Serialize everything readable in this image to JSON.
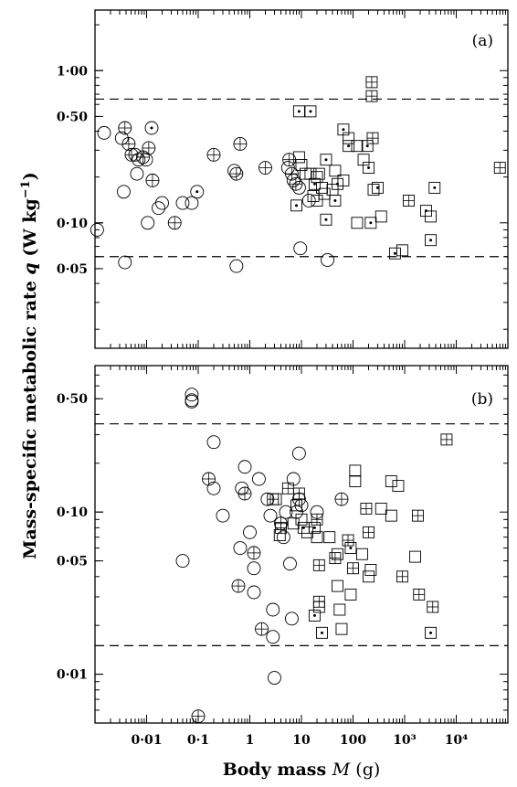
{
  "chart_data": {
    "type": "scatter",
    "xlabel": "Body mass M (g)",
    "ylabel": "Mass-specific metabolic rate q (W kg⁻¹)",
    "x_scale": "log",
    "y_scale": "log",
    "xlim": [
      0.001,
      100000
    ],
    "x_ticks": [
      {
        "value": 0.01,
        "label": "0·01"
      },
      {
        "value": 0.1,
        "label": "0·1"
      },
      {
        "value": 1,
        "label": "1"
      },
      {
        "value": 10,
        "label": "10"
      },
      {
        "value": 100,
        "label": "100"
      },
      {
        "value": 1000,
        "label": "10³"
      },
      {
        "value": 10000,
        "label": "10⁴"
      }
    ],
    "marker_legend": {
      "circle": "open circle",
      "circle-cross": "circle with cross",
      "circle-dot": "circle with dot",
      "square": "open square",
      "square-cross": "square with cross",
      "square-dot": "square with dot"
    },
    "panels": [
      {
        "label": "(a)",
        "ylim": [
          0.015,
          2.5
        ],
        "y_ticks": [
          {
            "value": 1.0,
            "label": "1·00"
          },
          {
            "value": 0.5,
            "label": "0·50"
          },
          {
            "value": 0.1,
            "label": "0·10"
          },
          {
            "value": 0.05,
            "label": "0·05"
          }
        ],
        "ref_lines": [
          0.65,
          0.06
        ],
        "points": [
          {
            "x": 0.0011,
            "y": 0.09,
            "m": "circle"
          },
          {
            "x": 0.0015,
            "y": 0.39,
            "m": "circle"
          },
          {
            "x": 0.0033,
            "y": 0.36,
            "m": "circle"
          },
          {
            "x": 0.0038,
            "y": 0.42,
            "m": "circle-cross"
          },
          {
            "x": 0.0036,
            "y": 0.16,
            "m": "circle"
          },
          {
            "x": 0.0038,
            "y": 0.055,
            "m": "circle"
          },
          {
            "x": 0.0045,
            "y": 0.33,
            "m": "circle-cross"
          },
          {
            "x": 0.0051,
            "y": 0.28,
            "m": "circle-cross"
          },
          {
            "x": 0.006,
            "y": 0.28,
            "m": "circle"
          },
          {
            "x": 0.0065,
            "y": 0.21,
            "m": "circle"
          },
          {
            "x": 0.007,
            "y": 0.26,
            "m": "circle"
          },
          {
            "x": 0.0085,
            "y": 0.27,
            "m": "circle-cross"
          },
          {
            "x": 0.0098,
            "y": 0.26,
            "m": "circle"
          },
          {
            "x": 0.011,
            "y": 0.31,
            "m": "circle-cross"
          },
          {
            "x": 0.0125,
            "y": 0.42,
            "m": "circle-dot"
          },
          {
            "x": 0.013,
            "y": 0.19,
            "m": "circle-cross"
          },
          {
            "x": 0.0105,
            "y": 0.1,
            "m": "circle"
          },
          {
            "x": 0.017,
            "y": 0.125,
            "m": "circle"
          },
          {
            "x": 0.02,
            "y": 0.135,
            "m": "circle"
          },
          {
            "x": 0.035,
            "y": 0.1,
            "m": "circle-cross"
          },
          {
            "x": 0.05,
            "y": 0.135,
            "m": "circle"
          },
          {
            "x": 0.075,
            "y": 0.135,
            "m": "circle"
          },
          {
            "x": 0.095,
            "y": 0.16,
            "m": "circle-dot"
          },
          {
            "x": 0.2,
            "y": 0.28,
            "m": "circle-cross"
          },
          {
            "x": 0.5,
            "y": 0.22,
            "m": "circle"
          },
          {
            "x": 0.55,
            "y": 0.21,
            "m": "circle-cross"
          },
          {
            "x": 0.65,
            "y": 0.33,
            "m": "circle-cross"
          },
          {
            "x": 0.55,
            "y": 0.052,
            "m": "circle"
          },
          {
            "x": 2.0,
            "y": 0.23,
            "m": "circle-cross"
          },
          {
            "x": 5.8,
            "y": 0.26,
            "m": "circle-cross"
          },
          {
            "x": 5.5,
            "y": 0.23,
            "m": "circle"
          },
          {
            "x": 6.5,
            "y": 0.21,
            "m": "circle-cross"
          },
          {
            "x": 7.0,
            "y": 0.19,
            "m": "circle"
          },
          {
            "x": 7.8,
            "y": 0.18,
            "m": "circle-cross"
          },
          {
            "x": 9.0,
            "y": 0.17,
            "m": "circle"
          },
          {
            "x": 14.0,
            "y": 0.14,
            "m": "circle"
          },
          {
            "x": 9.5,
            "y": 0.068,
            "m": "circle"
          },
          {
            "x": 32.0,
            "y": 0.057,
            "m": "circle"
          },
          {
            "x": 9.0,
            "y": 0.54,
            "m": "square-dot"
          },
          {
            "x": 15.0,
            "y": 0.54,
            "m": "square-dot"
          },
          {
            "x": 230.0,
            "y": 0.84,
            "m": "square-cross"
          },
          {
            "x": 230.0,
            "y": 0.68,
            "m": "square-cross"
          },
          {
            "x": 240.0,
            "y": 0.36,
            "m": "square-cross"
          },
          {
            "x": 65.0,
            "y": 0.41,
            "m": "square-dot"
          },
          {
            "x": 82.0,
            "y": 0.36,
            "m": "square"
          },
          {
            "x": 82.0,
            "y": 0.32,
            "m": "square-dot"
          },
          {
            "x": 120.0,
            "y": 0.32,
            "m": "square"
          },
          {
            "x": 160.0,
            "y": 0.26,
            "m": "square"
          },
          {
            "x": 190.0,
            "y": 0.32,
            "m": "square-dot"
          },
          {
            "x": 200.0,
            "y": 0.23,
            "m": "square-dot"
          },
          {
            "x": 30.0,
            "y": 0.26,
            "m": "square-dot"
          },
          {
            "x": 45.0,
            "y": 0.22,
            "m": "square"
          },
          {
            "x": 9.0,
            "y": 0.27,
            "m": "square"
          },
          {
            "x": 10.0,
            "y": 0.24,
            "m": "square"
          },
          {
            "x": 12.0,
            "y": 0.21,
            "m": "square"
          },
          {
            "x": 15.0,
            "y": 0.21,
            "m": "square"
          },
          {
            "x": 20.0,
            "y": 0.2,
            "m": "square"
          },
          {
            "x": 22.0,
            "y": 0.21,
            "m": "square"
          },
          {
            "x": 18.0,
            "y": 0.18,
            "m": "square-dot"
          },
          {
            "x": 25.0,
            "y": 0.17,
            "m": "square"
          },
          {
            "x": 50.0,
            "y": 0.18,
            "m": "square-dot"
          },
          {
            "x": 65.0,
            "y": 0.19,
            "m": "square"
          },
          {
            "x": 40.0,
            "y": 0.165,
            "m": "square"
          },
          {
            "x": 28.0,
            "y": 0.155,
            "m": "square"
          },
          {
            "x": 17.0,
            "y": 0.15,
            "m": "square"
          },
          {
            "x": 8.0,
            "y": 0.13,
            "m": "square-dot"
          },
          {
            "x": 20.0,
            "y": 0.14,
            "m": "square"
          },
          {
            "x": 45.0,
            "y": 0.14,
            "m": "square-dot"
          },
          {
            "x": 30.0,
            "y": 0.105,
            "m": "square-dot"
          },
          {
            "x": 120.0,
            "y": 0.1,
            "m": "square"
          },
          {
            "x": 220.0,
            "y": 0.1,
            "m": "square-dot"
          },
          {
            "x": 350.0,
            "y": 0.11,
            "m": "square"
          },
          {
            "x": 300.0,
            "y": 0.17,
            "m": "square-dot"
          },
          {
            "x": 250.0,
            "y": 0.165,
            "m": "square"
          },
          {
            "x": 1200.0,
            "y": 0.14,
            "m": "square-cross"
          },
          {
            "x": 2600.0,
            "y": 0.12,
            "m": "square-dot"
          },
          {
            "x": 3200.0,
            "y": 0.11,
            "m": "square"
          },
          {
            "x": 3800.0,
            "y": 0.17,
            "m": "square-dot"
          },
          {
            "x": 3200.0,
            "y": 0.077,
            "m": "square-dot"
          },
          {
            "x": 650.0,
            "y": 0.063,
            "m": "square-dot"
          },
          {
            "x": 900.0,
            "y": 0.066,
            "m": "square"
          },
          {
            "x": 70000.0,
            "y": 0.23,
            "m": "square-cross"
          }
        ]
      },
      {
        "label": "(b)",
        "ylim": [
          0.005,
          0.8
        ],
        "y_ticks": [
          {
            "value": 0.5,
            "label": "0·50"
          },
          {
            "value": 0.1,
            "label": "0·10"
          },
          {
            "value": 0.05,
            "label": "0·05"
          },
          {
            "value": 0.01,
            "label": "0·01"
          }
        ],
        "ref_lines": [
          0.35,
          0.015
        ],
        "points": [
          {
            "x": 0.075,
            "y": 0.53,
            "m": "circle"
          },
          {
            "x": 0.075,
            "y": 0.48,
            "m": "circle"
          },
          {
            "x": 0.075,
            "y": 0.49,
            "m": "circle"
          },
          {
            "x": 0.2,
            "y": 0.27,
            "m": "circle"
          },
          {
            "x": 0.05,
            "y": 0.05,
            "m": "circle"
          },
          {
            "x": 0.1,
            "y": 0.0055,
            "m": "circle-cross"
          },
          {
            "x": 0.16,
            "y": 0.16,
            "m": "circle-cross"
          },
          {
            "x": 0.2,
            "y": 0.14,
            "m": "circle"
          },
          {
            "x": 0.3,
            "y": 0.095,
            "m": "circle"
          },
          {
            "x": 0.7,
            "y": 0.14,
            "m": "circle"
          },
          {
            "x": 0.8,
            "y": 0.13,
            "m": "circle-cross"
          },
          {
            "x": 0.8,
            "y": 0.19,
            "m": "circle"
          },
          {
            "x": 0.65,
            "y": 0.06,
            "m": "circle"
          },
          {
            "x": 0.6,
            "y": 0.035,
            "m": "circle-cross"
          },
          {
            "x": 1.0,
            "y": 0.075,
            "m": "circle"
          },
          {
            "x": 1.2,
            "y": 0.056,
            "m": "circle-cross"
          },
          {
            "x": 1.2,
            "y": 0.045,
            "m": "circle"
          },
          {
            "x": 1.2,
            "y": 0.032,
            "m": "circle"
          },
          {
            "x": 1.5,
            "y": 0.16,
            "m": "circle"
          },
          {
            "x": 1.7,
            "y": 0.019,
            "m": "circle-cross"
          },
          {
            "x": 2.2,
            "y": 0.12,
            "m": "circle"
          },
          {
            "x": 2.5,
            "y": 0.095,
            "m": "circle"
          },
          {
            "x": 2.8,
            "y": 0.025,
            "m": "circle"
          },
          {
            "x": 2.8,
            "y": 0.017,
            "m": "circle"
          },
          {
            "x": 3.0,
            "y": 0.0095,
            "m": "circle"
          },
          {
            "x": 4.0,
            "y": 0.085,
            "m": "circle-cross"
          },
          {
            "x": 4.5,
            "y": 0.07,
            "m": "circle"
          },
          {
            "x": 5.0,
            "y": 0.1,
            "m": "circle"
          },
          {
            "x": 6.0,
            "y": 0.048,
            "m": "circle"
          },
          {
            "x": 6.5,
            "y": 0.022,
            "m": "circle"
          },
          {
            "x": 7.0,
            "y": 0.16,
            "m": "circle"
          },
          {
            "x": 9.0,
            "y": 0.23,
            "m": "circle"
          },
          {
            "x": 9.0,
            "y": 0.12,
            "m": "circle-cross"
          },
          {
            "x": 10.0,
            "y": 0.11,
            "m": "circle"
          },
          {
            "x": 8.0,
            "y": 0.1,
            "m": "circle"
          },
          {
            "x": 20.0,
            "y": 0.1,
            "m": "circle"
          },
          {
            "x": 60.0,
            "y": 0.12,
            "m": "circle-cross"
          },
          {
            "x": 2.8,
            "y": 0.12,
            "m": "square-cross"
          },
          {
            "x": 3.2,
            "y": 0.12,
            "m": "square"
          },
          {
            "x": 4.0,
            "y": 0.08,
            "m": "square-cross"
          },
          {
            "x": 3.8,
            "y": 0.072,
            "m": "square"
          },
          {
            "x": 5.5,
            "y": 0.14,
            "m": "square-cross"
          },
          {
            "x": 7.0,
            "y": 0.085,
            "m": "square"
          },
          {
            "x": 8.0,
            "y": 0.11,
            "m": "square"
          },
          {
            "x": 9.0,
            "y": 0.13,
            "m": "square-cross"
          },
          {
            "x": 10.0,
            "y": 0.09,
            "m": "square"
          },
          {
            "x": 11.0,
            "y": 0.08,
            "m": "square-dot"
          },
          {
            "x": 13.0,
            "y": 0.075,
            "m": "square"
          },
          {
            "x": 18.0,
            "y": 0.08,
            "m": "square-dot"
          },
          {
            "x": 20.0,
            "y": 0.09,
            "m": "square-cross"
          },
          {
            "x": 20.0,
            "y": 0.07,
            "m": "square"
          },
          {
            "x": 22.0,
            "y": 0.047,
            "m": "square-cross"
          },
          {
            "x": 22.0,
            "y": 0.028,
            "m": "square-cross"
          },
          {
            "x": 22.0,
            "y": 0.026,
            "m": "square"
          },
          {
            "x": 18.0,
            "y": 0.023,
            "m": "square-dot"
          },
          {
            "x": 25.0,
            "y": 0.018,
            "m": "square-dot"
          },
          {
            "x": 35.0,
            "y": 0.07,
            "m": "square"
          },
          {
            "x": 45.0,
            "y": 0.052,
            "m": "square-cross"
          },
          {
            "x": 50.0,
            "y": 0.055,
            "m": "square"
          },
          {
            "x": 50.0,
            "y": 0.035,
            "m": "square"
          },
          {
            "x": 55.0,
            "y": 0.025,
            "m": "square"
          },
          {
            "x": 60.0,
            "y": 0.019,
            "m": "square"
          },
          {
            "x": 80.0,
            "y": 0.067,
            "m": "square-cross"
          },
          {
            "x": 90.0,
            "y": 0.06,
            "m": "square-dot"
          },
          {
            "x": 100.0,
            "y": 0.045,
            "m": "square-cross"
          },
          {
            "x": 90.0,
            "y": 0.031,
            "m": "square"
          },
          {
            "x": 110.0,
            "y": 0.18,
            "m": "square"
          },
          {
            "x": 110.0,
            "y": 0.155,
            "m": "square"
          },
          {
            "x": 150.0,
            "y": 0.055,
            "m": "square"
          },
          {
            "x": 200.0,
            "y": 0.04,
            "m": "square"
          },
          {
            "x": 180.0,
            "y": 0.105,
            "m": "square-cross"
          },
          {
            "x": 200.0,
            "y": 0.075,
            "m": "square-cross"
          },
          {
            "x": 220.0,
            "y": 0.044,
            "m": "square"
          },
          {
            "x": 350.0,
            "y": 0.105,
            "m": "square"
          },
          {
            "x": 550.0,
            "y": 0.155,
            "m": "square"
          },
          {
            "x": 550.0,
            "y": 0.095,
            "m": "square"
          },
          {
            "x": 750.0,
            "y": 0.145,
            "m": "square"
          },
          {
            "x": 900.0,
            "y": 0.04,
            "m": "square-cross"
          },
          {
            "x": 1800.0,
            "y": 0.095,
            "m": "square-cross"
          },
          {
            "x": 1600.0,
            "y": 0.053,
            "m": "square"
          },
          {
            "x": 1900.0,
            "y": 0.031,
            "m": "square-cross"
          },
          {
            "x": 3500.0,
            "y": 0.026,
            "m": "square-cross"
          },
          {
            "x": 3200.0,
            "y": 0.018,
            "m": "square-dot"
          },
          {
            "x": 6500.0,
            "y": 0.28,
            "m": "square-cross"
          }
        ]
      }
    ]
  },
  "ylabel_parts": {
    "main": "Mass-specific metabolic rate ",
    "var": "q",
    "unit": " (W kg",
    "sup": "−1",
    "close": ")"
  },
  "xlabel_parts": {
    "main": "Body mass ",
    "var": "M",
    "unit": " (g)"
  }
}
